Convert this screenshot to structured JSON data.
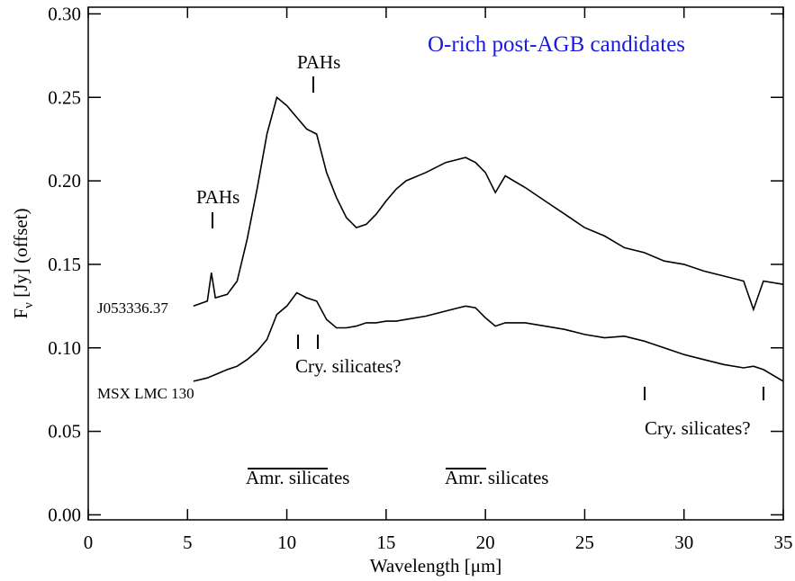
{
  "chart_data": {
    "type": "line",
    "x_label": "Wavelength [μm]",
    "y_label_parts": [
      "F",
      "ν",
      " [Jy] (offset)"
    ],
    "annotations": [
      "O-rich post-AGB candidates",
      "PAHs",
      "PAHs",
      "Cry. silicates?",
      "Cry. silicates?",
      "Amr. silicates",
      "Amr. silicates"
    ],
    "x": [
      5.3,
      6,
      6.2,
      6.4,
      7,
      7.5,
      8,
      8.5,
      9,
      9.5,
      10,
      10.5,
      11,
      11.5,
      12,
      12.5,
      13,
      13.5,
      14,
      14.5,
      15,
      15.5,
      16,
      17,
      18,
      19,
      19.5,
      20,
      20.5,
      21,
      22,
      23,
      24,
      25,
      26,
      27,
      28,
      29,
      30,
      31,
      32,
      33,
      33.5,
      34,
      35
    ],
    "series": [
      {
        "name": "J053336.37",
        "color": "#000000",
        "values": [
          0.125,
          0.128,
          0.145,
          0.13,
          0.132,
          0.14,
          0.165,
          0.195,
          0.228,
          0.25,
          0.245,
          0.238,
          0.231,
          0.228,
          0.205,
          0.19,
          0.178,
          0.172,
          0.174,
          0.18,
          0.188,
          0.195,
          0.2,
          0.205,
          0.211,
          0.214,
          0.211,
          0.205,
          0.193,
          0.203,
          0.196,
          0.188,
          0.18,
          0.172,
          0.167,
          0.16,
          0.157,
          0.152,
          0.15,
          0.146,
          0.143,
          0.14,
          0.123,
          0.14,
          0.138
        ]
      },
      {
        "name": "MSX LMC 130",
        "color": "#000000",
        "values": [
          0.08,
          0.082,
          0.083,
          0.084,
          0.087,
          0.089,
          0.093,
          0.098,
          0.105,
          0.12,
          0.125,
          0.133,
          0.13,
          0.128,
          0.117,
          0.112,
          0.112,
          0.113,
          0.115,
          0.115,
          0.116,
          0.116,
          0.117,
          0.119,
          0.122,
          0.125,
          0.124,
          0.118,
          0.113,
          0.115,
          0.115,
          0.113,
          0.111,
          0.108,
          0.106,
          0.107,
          0.104,
          0.1,
          0.096,
          0.093,
          0.09,
          0.088,
          0.089,
          0.087,
          0.08
        ]
      }
    ],
    "xlim": [
      0,
      35
    ],
    "xticks": [
      0,
      5,
      10,
      15,
      20,
      25,
      30,
      35
    ],
    "ylim": [
      -0.003,
      0.304
    ],
    "yticks": [
      {
        "value": 0,
        "label": "0.00"
      },
      {
        "value": 0.05,
        "label": "0.05"
      },
      {
        "value": 0.1,
        "label": "0.10"
      },
      {
        "value": 0.15,
        "label": "0.15"
      },
      {
        "value": 0.2,
        "label": "0.20"
      },
      {
        "value": 0.25,
        "label": "0.25"
      },
      {
        "value": 0.3,
        "label": "0.30"
      }
    ],
    "annotation_color": "#1a1adc"
  }
}
